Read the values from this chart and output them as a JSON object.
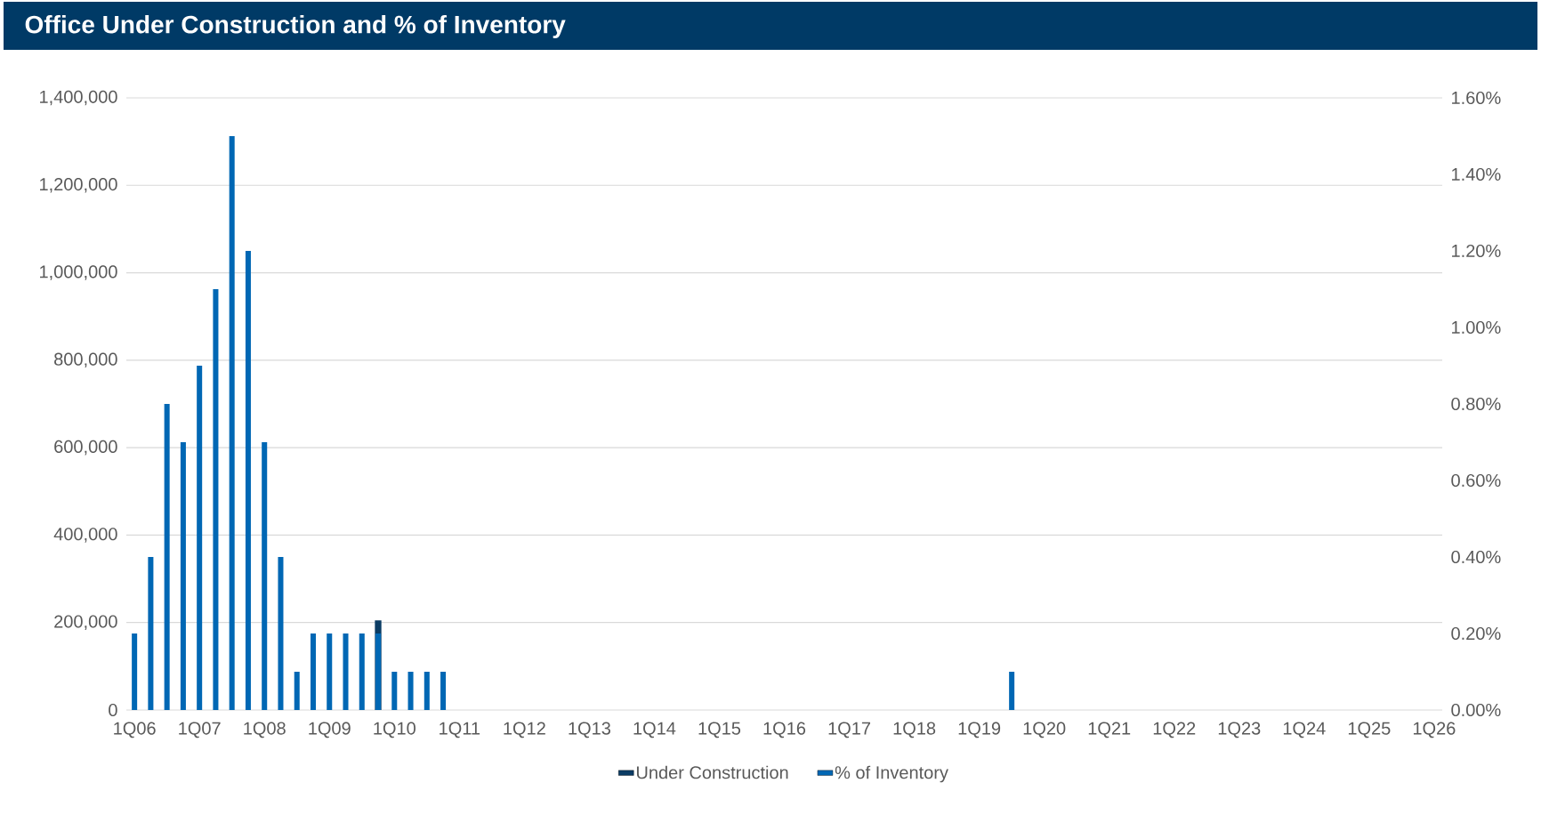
{
  "chart_data": {
    "type": "bar",
    "title": "Office Under Construction and % of Inventory",
    "categories": [
      "1Q06",
      null,
      null,
      null,
      "1Q07",
      null,
      null,
      null,
      "1Q08",
      null,
      null,
      null,
      "1Q09",
      null,
      null,
      null,
      "1Q10",
      null,
      null,
      null,
      "1Q11",
      null,
      null,
      null,
      "1Q12",
      null,
      null,
      null,
      "1Q13",
      null,
      null,
      null,
      "1Q14",
      null,
      null,
      null,
      "1Q15",
      null,
      null,
      null,
      "1Q16",
      null,
      null,
      null,
      "1Q17",
      null,
      null,
      null,
      "1Q18",
      null,
      null,
      null,
      "1Q19",
      null,
      null,
      null,
      "1Q20",
      null,
      null,
      null,
      "1Q21",
      null,
      null,
      null,
      "1Q22",
      null,
      null,
      null,
      "1Q23",
      null,
      null,
      null,
      "1Q24",
      null,
      null,
      null,
      "1Q25",
      null,
      null,
      null,
      "1Q26"
    ],
    "series": [
      {
        "name": "Under Construction",
        "color": "#0b3c64",
        "values": [
          null,
          null,
          null,
          null,
          null,
          null,
          null,
          null,
          null,
          null,
          null,
          null,
          null,
          null,
          null,
          205000,
          null,
          null,
          null,
          null,
          null,
          null,
          null,
          null,
          null,
          null,
          null,
          null,
          null,
          null,
          null,
          null,
          null,
          null,
          null,
          null,
          null,
          null,
          null,
          null,
          null,
          null,
          null,
          null,
          null,
          null,
          null,
          null,
          null,
          null,
          null,
          null,
          null,
          null,
          null,
          null,
          null,
          null,
          null,
          null,
          null,
          null,
          null,
          null,
          null,
          null,
          null,
          null,
          null,
          null,
          null,
          null,
          null,
          null,
          null,
          null,
          null,
          null,
          null,
          null,
          null
        ]
      },
      {
        "name": "% of Inventory",
        "color": "#0067b4",
        "axis": "y2",
        "values": [
          0.2,
          0.4,
          0.8,
          0.7,
          0.9,
          1.1,
          1.5,
          1.2,
          0.7,
          0.4,
          0.1,
          0.2,
          0.2,
          0.2,
          0.2,
          0.2,
          0.1,
          0.1,
          0.1,
          0.1,
          0,
          0,
          0,
          0,
          0,
          0,
          0,
          0,
          0,
          0,
          0,
          0,
          0,
          0,
          0,
          0,
          0,
          0,
          0,
          0,
          0,
          0,
          0,
          0,
          0,
          0,
          0,
          0,
          0,
          0,
          0,
          0,
          0,
          0,
          0.1,
          0,
          0,
          0,
          0,
          0,
          0,
          0,
          0,
          0,
          0,
          0,
          0,
          0,
          0,
          0,
          0,
          0,
          0,
          0,
          0,
          0,
          0,
          0,
          0,
          0,
          0
        ]
      }
    ],
    "ylim": [
      0,
      1400000
    ],
    "yticks": [
      0,
      {
        "value": 200000,
        "label": "200,000"
      },
      {
        "value": 400000,
        "label": "400,000"
      },
      {
        "value": 600000,
        "label": "600,000"
      },
      {
        "value": 800000,
        "label": "800,000"
      },
      {
        "value": 1000000,
        "label": "1,000,000"
      },
      {
        "value": 1200000,
        "label": "1,200,000"
      },
      {
        "value": 1400000,
        "label": "1,400,000"
      }
    ],
    "y2lim": [
      0,
      1.6
    ],
    "y2ticks": [
      {
        "value": 0,
        "label": "0.00%"
      },
      {
        "value": 0.2,
        "label": "0.20%"
      },
      {
        "value": 0.4,
        "label": "0.40%"
      },
      {
        "value": 0.6,
        "label": "0.60%"
      },
      {
        "value": 0.8,
        "label": "0.80%"
      },
      {
        "value": 1.0,
        "label": "1.00%"
      },
      {
        "value": 1.2,
        "label": "1.20%"
      },
      {
        "value": 1.4,
        "label": "1.40%"
      },
      {
        "value": 1.6,
        "label": "1.60%"
      }
    ],
    "grid": "y",
    "legend": "bottom"
  }
}
